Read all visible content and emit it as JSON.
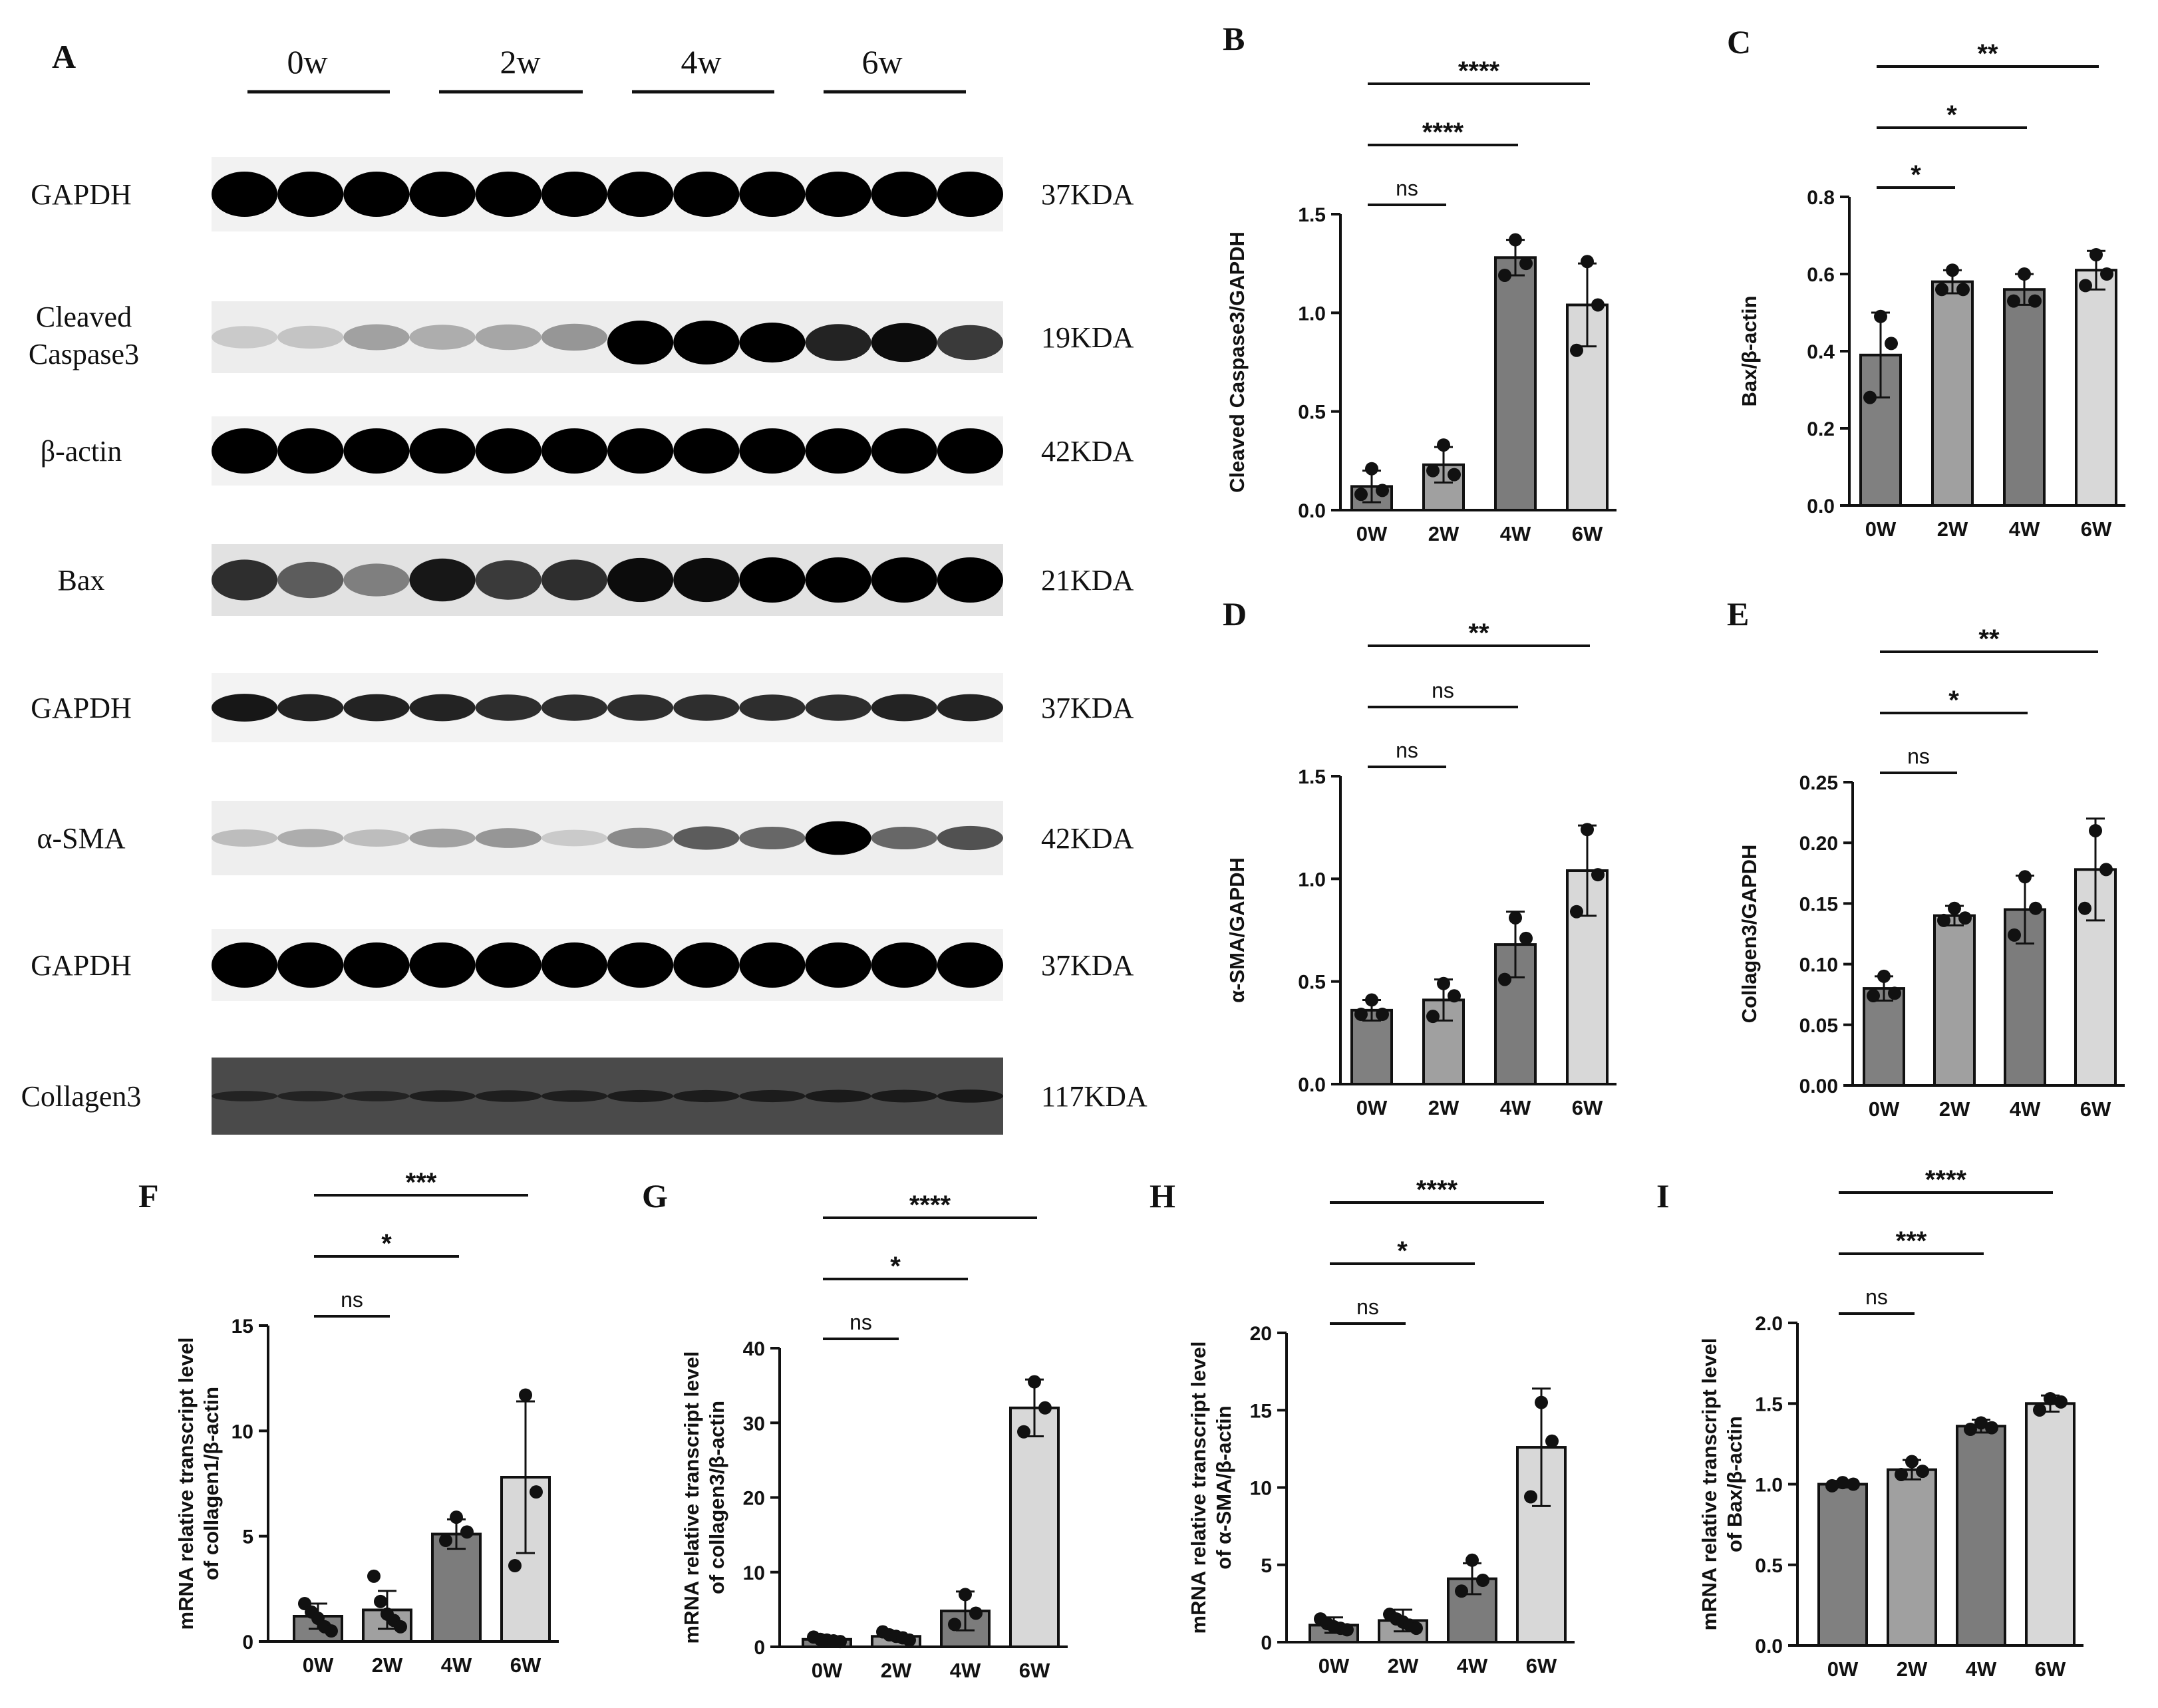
{
  "panels": {
    "A": {
      "letter": "A"
    },
    "blot_groups": [
      "0w",
      "2w",
      "4w",
      "6w"
    ],
    "blots": [
      {
        "label": "GAPDH",
        "size": "37KDA",
        "kind": "uniform"
      },
      {
        "label": "Cleaved Caspase3",
        "size": "19KDA",
        "kind": "cleaved"
      },
      {
        "label": "β-actin",
        "size": "42KDA",
        "kind": "uniform"
      },
      {
        "label": "Bax",
        "size": "21KDA",
        "kind": "bax"
      },
      {
        "label": "GAPDH",
        "size": "37KDA",
        "kind": "thin"
      },
      {
        "label": "α-SMA",
        "size": "42KDA",
        "kind": "sma"
      },
      {
        "label": "GAPDH",
        "size": "37KDA",
        "kind": "uniform"
      },
      {
        "label": "Collagen3",
        "size": "117KDA",
        "kind": "collagen"
      }
    ]
  },
  "chart_data": [
    {
      "panel": "B",
      "type": "bar",
      "categories": [
        "0W",
        "2W",
        "4W",
        "6W"
      ],
      "ylabel": "Cleaved Caspase3/GAPDH",
      "ylim": [
        0,
        1.5
      ],
      "yticks": [
        "0.0",
        "0.5",
        "1.0",
        "1.5"
      ],
      "values": [
        0.12,
        0.23,
        1.28,
        1.04
      ],
      "errors": [
        0.08,
        0.09,
        0.09,
        0.21
      ],
      "points": [
        [
          0.21,
          0.1,
          0.08
        ],
        [
          0.33,
          0.18,
          0.2
        ],
        [
          1.37,
          1.25,
          1.19
        ],
        [
          1.26,
          1.04,
          0.81
        ]
      ],
      "colors": [
        "#808080",
        "#a0a0a0",
        "#7c7c7c",
        "#d8d8d8"
      ],
      "significance": [
        {
          "from": 0,
          "to": 3,
          "label": "****"
        },
        {
          "from": 0,
          "to": 2,
          "label": "****"
        },
        {
          "from": 0,
          "to": 1,
          "label": "ns"
        }
      ]
    },
    {
      "panel": "C",
      "type": "bar",
      "categories": [
        "0W",
        "2W",
        "4W",
        "6W"
      ],
      "ylabel": "Bax/β-actin",
      "ylim": [
        0,
        0.8
      ],
      "yticks": [
        "0.0",
        "0.2",
        "0.4",
        "0.6",
        "0.8"
      ],
      "values": [
        0.39,
        0.58,
        0.56,
        0.61
      ],
      "errors": [
        0.11,
        0.03,
        0.04,
        0.05
      ],
      "points": [
        [
          0.49,
          0.42,
          0.28
        ],
        [
          0.61,
          0.56,
          0.56
        ],
        [
          0.6,
          0.53,
          0.53
        ],
        [
          0.65,
          0.6,
          0.57
        ]
      ],
      "colors": [
        "#808080",
        "#a0a0a0",
        "#7c7c7c",
        "#d8d8d8"
      ],
      "significance": [
        {
          "from": 0,
          "to": 3,
          "label": "**"
        },
        {
          "from": 0,
          "to": 2,
          "label": "*"
        },
        {
          "from": 0,
          "to": 1,
          "label": "*"
        }
      ]
    },
    {
      "panel": "D",
      "type": "bar",
      "categories": [
        "0W",
        "2W",
        "4W",
        "6W"
      ],
      "ylabel": "α-SMA/GAPDH",
      "ylim": [
        0,
        1.5
      ],
      "yticks": [
        "0.0",
        "0.5",
        "1.0",
        "1.5"
      ],
      "values": [
        0.36,
        0.41,
        0.68,
        1.04
      ],
      "errors": [
        0.05,
        0.1,
        0.16,
        0.22
      ],
      "points": [
        [
          0.41,
          0.34,
          0.34
        ],
        [
          0.49,
          0.43,
          0.33
        ],
        [
          0.81,
          0.71,
          0.51
        ],
        [
          1.24,
          1.02,
          0.84
        ]
      ],
      "colors": [
        "#808080",
        "#a0a0a0",
        "#7c7c7c",
        "#d8d8d8"
      ],
      "significance": [
        {
          "from": 0,
          "to": 3,
          "label": "**"
        },
        {
          "from": 0,
          "to": 2,
          "label": "ns"
        },
        {
          "from": 0,
          "to": 1,
          "label": "ns"
        }
      ]
    },
    {
      "panel": "E",
      "type": "bar",
      "categories": [
        "0W",
        "2W",
        "4W",
        "6W"
      ],
      "ylabel": "Collagen3/GAPDH",
      "ylim": [
        0,
        0.25
      ],
      "yticks": [
        "0.00",
        "0.05",
        "0.10",
        "0.15",
        "0.20",
        "0.25"
      ],
      "values": [
        0.08,
        0.14,
        0.145,
        0.178
      ],
      "errors": [
        0.01,
        0.008,
        0.028,
        0.042
      ],
      "points": [
        [
          0.09,
          0.076,
          0.074
        ],
        [
          0.146,
          0.138,
          0.136
        ],
        [
          0.172,
          0.146,
          0.124
        ],
        [
          0.21,
          0.178,
          0.146
        ]
      ],
      "colors": [
        "#808080",
        "#a0a0a0",
        "#7c7c7c",
        "#d8d8d8"
      ],
      "significance": [
        {
          "from": 0,
          "to": 3,
          "label": "**"
        },
        {
          "from": 0,
          "to": 2,
          "label": "*"
        },
        {
          "from": 0,
          "to": 1,
          "label": "ns"
        }
      ]
    },
    {
      "panel": "F",
      "type": "bar",
      "categories": [
        "0W",
        "2W",
        "4W",
        "6W"
      ],
      "ylabel": [
        "mRNA relative transcript level",
        "of collagen1/β-actin"
      ],
      "ylim": [
        0,
        15
      ],
      "yticks": [
        "0",
        "5",
        "10",
        "15"
      ],
      "values": [
        1.2,
        1.5,
        5.1,
        7.8
      ],
      "errors": [
        0.6,
        0.9,
        0.7,
        3.6
      ],
      "points": [
        [
          1.8,
          1.4,
          1.1,
          0.7,
          0.5
        ],
        [
          3.1,
          1.9,
          1.3,
          1.0,
          0.7
        ],
        [
          5.9,
          5.2,
          4.8
        ],
        [
          11.7,
          7.1,
          3.6
        ]
      ],
      "colors": [
        "#808080",
        "#a0a0a0",
        "#7c7c7c",
        "#d8d8d8"
      ],
      "significance": [
        {
          "from": 0,
          "to": 3,
          "label": "***"
        },
        {
          "from": 0,
          "to": 2,
          "label": "*"
        },
        {
          "from": 0,
          "to": 1,
          "label": "ns"
        }
      ]
    },
    {
      "panel": "G",
      "type": "bar",
      "categories": [
        "0W",
        "2W",
        "4W",
        "6W"
      ],
      "ylabel": [
        "mRNA relative transcript level",
        "of collagen3/β-actin"
      ],
      "ylim": [
        0,
        40
      ],
      "yticks": [
        "0",
        "10",
        "20",
        "30",
        "40"
      ],
      "values": [
        1.0,
        1.4,
        4.8,
        32
      ],
      "errors": [
        0.4,
        0.5,
        2.6,
        3.8
      ],
      "points": [
        [
          1.3,
          1.0,
          0.9,
          0.8,
          0.7
        ],
        [
          2.0,
          1.6,
          1.4,
          1.2,
          0.9
        ],
        [
          7.0,
          4.5,
          3.0
        ],
        [
          35.5,
          32.0,
          28.8
        ]
      ],
      "colors": [
        "#808080",
        "#a0a0a0",
        "#7c7c7c",
        "#d8d8d8"
      ],
      "significance": [
        {
          "from": 0,
          "to": 3,
          "label": "****"
        },
        {
          "from": 0,
          "to": 2,
          "label": "*"
        },
        {
          "from": 0,
          "to": 1,
          "label": "ns"
        }
      ]
    },
    {
      "panel": "H",
      "type": "bar",
      "categories": [
        "0W",
        "2W",
        "4W",
        "6W"
      ],
      "ylabel": [
        "mRNA relative transcript level",
        "of α-SMA/β-actin"
      ],
      "ylim": [
        0,
        20
      ],
      "yticks": [
        "0",
        "5",
        "10",
        "15",
        "20"
      ],
      "values": [
        1.1,
        1.4,
        4.1,
        12.6
      ],
      "errors": [
        0.5,
        0.7,
        1.0,
        3.8
      ],
      "points": [
        [
          1.5,
          1.2,
          1.0,
          0.9,
          0.8
        ],
        [
          1.8,
          1.5,
          1.3,
          1.1,
          0.9
        ],
        [
          5.3,
          4.0,
          3.3
        ],
        [
          15.5,
          13.0,
          9.4
        ]
      ],
      "colors": [
        "#808080",
        "#a0a0a0",
        "#7c7c7c",
        "#d8d8d8"
      ],
      "significance": [
        {
          "from": 0,
          "to": 3,
          "label": "****"
        },
        {
          "from": 0,
          "to": 2,
          "label": "*"
        },
        {
          "from": 0,
          "to": 1,
          "label": "ns"
        }
      ]
    },
    {
      "panel": "I",
      "type": "bar",
      "categories": [
        "0W",
        "2W",
        "4W",
        "6W"
      ],
      "ylabel": [
        "mRNA relative transcript level",
        "of Bax/β-actin"
      ],
      "ylim": [
        0,
        2.0
      ],
      "yticks": [
        "0.0",
        "0.5",
        "1.0",
        "1.5",
        "2.0"
      ],
      "values": [
        1.0,
        1.09,
        1.36,
        1.5
      ],
      "errors": [
        0.02,
        0.06,
        0.04,
        0.05
      ],
      "points": [
        [
          1.01,
          1.0,
          0.99
        ],
        [
          1.14,
          1.08,
          1.06
        ],
        [
          1.38,
          1.35,
          1.34
        ],
        [
          1.53,
          1.51,
          1.46
        ]
      ],
      "colors": [
        "#808080",
        "#a0a0a0",
        "#7c7c7c",
        "#d8d8d8"
      ],
      "significance": [
        {
          "from": 0,
          "to": 3,
          "label": "****"
        },
        {
          "from": 0,
          "to": 2,
          "label": "***"
        },
        {
          "from": 0,
          "to": 1,
          "label": "ns"
        }
      ]
    }
  ]
}
